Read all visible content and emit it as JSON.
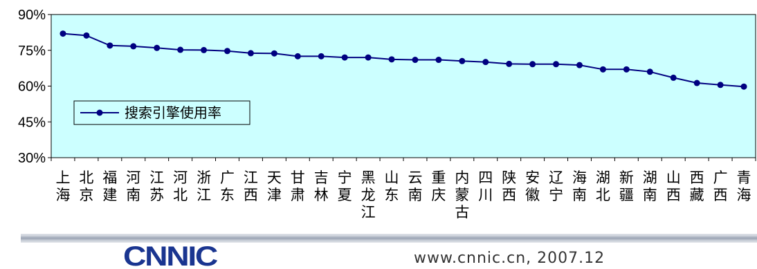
{
  "chart_data": {
    "type": "line",
    "categories": [
      "上海",
      "北京",
      "福建",
      "河南",
      "江苏",
      "河北",
      "浙江",
      "广东",
      "江西",
      "天津",
      "甘肃",
      "吉林",
      "宁夏",
      "黑龙江",
      "山东",
      "云南",
      "重庆",
      "内蒙古",
      "四川",
      "陕西",
      "安徽",
      "辽宁",
      "海南",
      "湖北",
      "新疆",
      "湖南",
      "山西",
      "西藏",
      "广西",
      "青海"
    ],
    "series": [
      {
        "name": "搜索引擎使用率",
        "values": [
          82.0,
          81.2,
          77.0,
          76.7,
          76.0,
          75.2,
          75.1,
          74.7,
          73.8,
          73.7,
          72.5,
          72.5,
          72.0,
          72.0,
          71.2,
          71.0,
          71.0,
          70.5,
          70.1,
          69.3,
          69.2,
          69.2,
          68.8,
          67.0,
          67.0,
          66.0,
          63.5,
          61.3,
          60.5,
          59.8
        ],
        "color": "#000080"
      }
    ],
    "ylim": [
      30,
      90
    ],
    "yticks": [
      "30%",
      "45%",
      "60%",
      "75%",
      "90%"
    ],
    "yticks_values": [
      30,
      45,
      60,
      75,
      90
    ],
    "grid": false,
    "legend_position": "left-middle",
    "plot_background": "#ccffff"
  },
  "footer": {
    "logo_text": "CNNIC",
    "source_text": "www.cnnic.cn,  2007.12"
  },
  "colors": {
    "line": "#000080",
    "plot_bg": "#ccffff",
    "band": "#a0a8b8"
  }
}
